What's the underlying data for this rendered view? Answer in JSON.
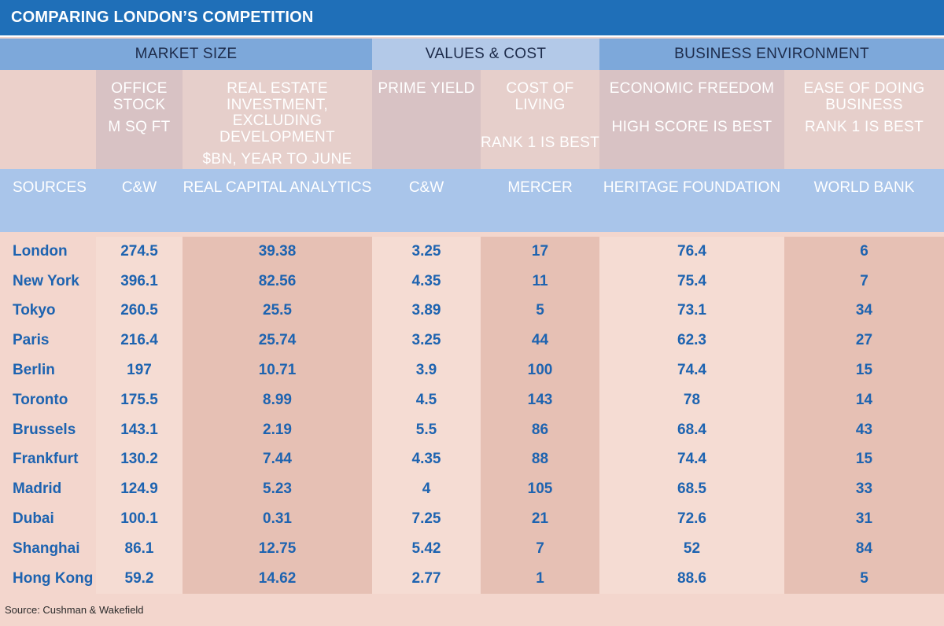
{
  "title": "COMPARING LONDON’S COMPETITION",
  "groups": {
    "market": "MARKET SIZE",
    "values": "VALUES & COST",
    "business": "BUSINESS ENVIRONMENT"
  },
  "columns": {
    "office_stock": {
      "label": "OFFICE STOCK",
      "unit": "M SQ FT",
      "source": "C&W"
    },
    "investment": {
      "label": "REAL ESTATE INVESTMENT, EXCLUDING DEVELOPMENT",
      "unit": "$BN, YEAR TO JUNE",
      "source": "REAL CAPITAL ANALYTICS"
    },
    "prime_yield": {
      "label": "PRIME YIELD",
      "unit": "",
      "source": "C&W"
    },
    "cost_of_living": {
      "label": "COST OF LIVING",
      "unit": "RANK 1 IS BEST",
      "source": "MERCER"
    },
    "economic_freedom": {
      "label": "ECONOMIC FREEDOM",
      "unit": "HIGH SCORE IS BEST",
      "source": "HERITAGE FOUNDATION"
    },
    "ease_of_business": {
      "label": "EASE OF DOING BUSINESS",
      "unit": "RANK 1 IS BEST",
      "source": "WORLD BANK"
    }
  },
  "sources_label": "SOURCES",
  "chart_data": {
    "type": "table",
    "title": "COMPARING LONDON’S COMPETITION",
    "columns": [
      "",
      "OFFICE STOCK M SQ FT",
      "REAL ESTATE INVESTMENT, EXCLUDING DEVELOPMENT $BN, YEAR TO JUNE",
      "PRIME YIELD",
      "COST OF LIVING RANK 1 IS BEST",
      "ECONOMIC FREEDOM HIGH SCORE IS BEST",
      "EASE OF DOING BUSINESS RANK 1 IS BEST"
    ],
    "rows": [
      [
        "London",
        "274.5",
        "39.38",
        "3.25",
        "17",
        "76.4",
        "6"
      ],
      [
        "New York",
        "396.1",
        "82.56",
        "4.35",
        "11",
        "75.4",
        "7"
      ],
      [
        "Tokyo",
        "260.5",
        "25.5",
        "3.89",
        "5",
        "73.1",
        "34"
      ],
      [
        "Paris",
        "216.4",
        "25.74",
        "3.25",
        "44",
        "62.3",
        "27"
      ],
      [
        "Berlin",
        "197",
        "10.71",
        "3.9",
        "100",
        "74.4",
        "15"
      ],
      [
        "Toronto",
        "175.5",
        "8.99",
        "4.5",
        "143",
        "78",
        "14"
      ],
      [
        "Brussels",
        "143.1",
        "2.19",
        "5.5",
        "86",
        "68.4",
        "43"
      ],
      [
        "Frankfurt",
        "130.2",
        "7.44",
        "4.35",
        "88",
        "74.4",
        "15"
      ],
      [
        "Madrid",
        "124.9",
        "5.23",
        "4",
        "105",
        "68.5",
        "33"
      ],
      [
        "Dubai",
        "100.1",
        "0.31",
        "7.25",
        "21",
        "72.6",
        "31"
      ],
      [
        "Shanghai",
        "86.1",
        "12.75",
        "5.42",
        "7",
        "52",
        "84"
      ],
      [
        "Hong Kong",
        "59.2",
        "14.62",
        "2.77",
        "1",
        "88.6",
        "5"
      ]
    ]
  },
  "footnote": "Source: Cushman & Wakefield",
  "colors": {
    "title_bg": "#1f6fb8",
    "group_header": "#7da8da",
    "values_header": "#b3c9e8",
    "sources_row": "#a9c5ea",
    "value_text": "#1d63b0",
    "background": "#f3d6cd"
  }
}
